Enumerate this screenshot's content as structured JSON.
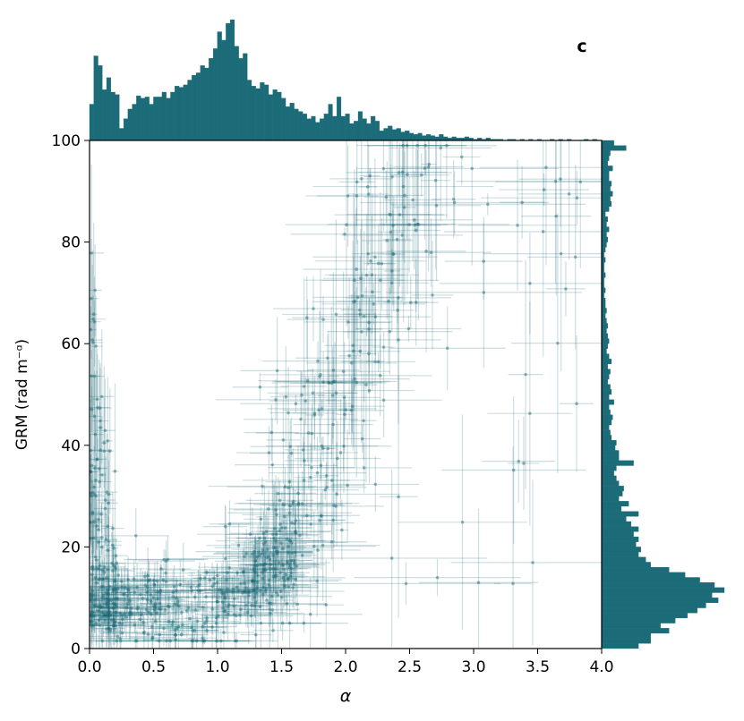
{
  "panel_label": "c",
  "chart_data": {
    "type": "scatter",
    "title": "",
    "xlabel": "α",
    "ylabel": "GRM (rad m⁻ᵅ)",
    "xlim": [
      0.0,
      4.0
    ],
    "ylim": [
      0,
      100
    ],
    "xticks": [
      "0.0",
      "0.5",
      "1.0",
      "1.5",
      "2.0",
      "2.5",
      "3.0",
      "3.5",
      "4.0"
    ],
    "yticks": [
      "0",
      "20",
      "40",
      "60",
      "80",
      "100"
    ],
    "grid": false,
    "color": "#1b6b78",
    "error_bars": true,
    "marginal_x_histogram": {
      "bin_width": 0.0333,
      "heights": [
        0.3,
        0.7,
        0.62,
        0.42,
        0.52,
        0.4,
        0.38,
        0.1,
        0.18,
        0.26,
        0.3,
        0.37,
        0.35,
        0.36,
        0.3,
        0.36,
        0.36,
        0.4,
        0.35,
        0.4,
        0.45,
        0.44,
        0.46,
        0.5,
        0.54,
        0.56,
        0.62,
        0.6,
        0.68,
        0.76,
        0.9,
        0.83,
        0.97,
        1.0,
        0.78,
        0.68,
        0.72,
        0.5,
        0.45,
        0.43,
        0.48,
        0.46,
        0.38,
        0.42,
        0.4,
        0.35,
        0.28,
        0.31,
        0.26,
        0.24,
        0.22,
        0.18,
        0.2,
        0.15,
        0.18,
        0.22,
        0.3,
        0.2,
        0.36,
        0.2,
        0.22,
        0.14,
        0.16,
        0.24,
        0.18,
        0.14,
        0.2,
        0.16,
        0.08,
        0.1,
        0.12,
        0.09,
        0.1,
        0.07,
        0.08,
        0.06,
        0.05,
        0.06,
        0.04,
        0.05,
        0.04,
        0.03,
        0.05,
        0.03,
        0.02,
        0.03,
        0.02,
        0.02,
        0.03,
        0.02,
        0.01,
        0.02,
        0.01,
        0.02,
        0.01,
        0.01,
        0.01,
        0.0,
        0.01,
        0.01,
        0.0,
        0.01,
        0.0,
        0.01,
        0.0,
        0.01,
        0.0,
        0.0,
        0.01,
        0.0,
        0.01,
        0.0,
        0.01,
        0.0,
        0.0,
        0.0,
        0.01,
        0.0,
        0.01,
        0.0
      ]
    },
    "marginal_y_histogram": {
      "bin_width": 1,
      "heights": [
        0.3,
        0.4,
        0.4,
        0.55,
        0.48,
        0.6,
        0.7,
        0.78,
        0.85,
        0.95,
        0.9,
        1.0,
        0.92,
        0.8,
        0.68,
        0.55,
        0.4,
        0.36,
        0.3,
        0.32,
        0.28,
        0.3,
        0.26,
        0.3,
        0.24,
        0.2,
        0.3,
        0.16,
        0.22,
        0.14,
        0.17,
        0.18,
        0.14,
        0.12,
        0.1,
        0.12,
        0.26,
        0.14,
        0.14,
        0.11,
        0.12,
        0.08,
        0.07,
        0.06,
        0.08,
        0.09,
        0.07,
        0.06,
        0.1,
        0.06,
        0.08,
        0.07,
        0.05,
        0.06,
        0.07,
        0.05,
        0.08,
        0.06,
        0.04,
        0.05,
        0.06,
        0.05,
        0.04,
        0.05,
        0.04,
        0.03,
        0.04,
        0.03,
        0.03,
        0.02,
        0.03,
        0.02,
        0.02,
        0.03,
        0.02,
        0.02,
        0.03,
        0.02,
        0.03,
        0.04,
        0.05,
        0.04,
        0.06,
        0.04,
        0.05,
        0.03,
        0.06,
        0.08,
        0.07,
        0.09,
        0.07,
        0.08,
        0.06,
        0.06,
        0.09,
        0.05,
        0.06,
        0.07,
        0.2,
        0.1
      ]
    },
    "clusters": [
      {
        "desc": "low-alpha steep branch",
        "x": [
          0.0,
          0.2
        ],
        "y": [
          2,
          85
        ],
        "points": 140
      },
      {
        "desc": "low GRM plateau",
        "x": [
          0.05,
          1.6
        ],
        "y": [
          1,
          22
        ],
        "points": 360
      },
      {
        "desc": "rising branch",
        "x": [
          1.2,
          2.6
        ],
        "y": [
          15,
          99
        ],
        "points": 260
      },
      {
        "desc": "sparse high-alpha",
        "x": [
          2.4,
          4.0
        ],
        "y": [
          5,
          99
        ],
        "points": 40
      }
    ]
  }
}
